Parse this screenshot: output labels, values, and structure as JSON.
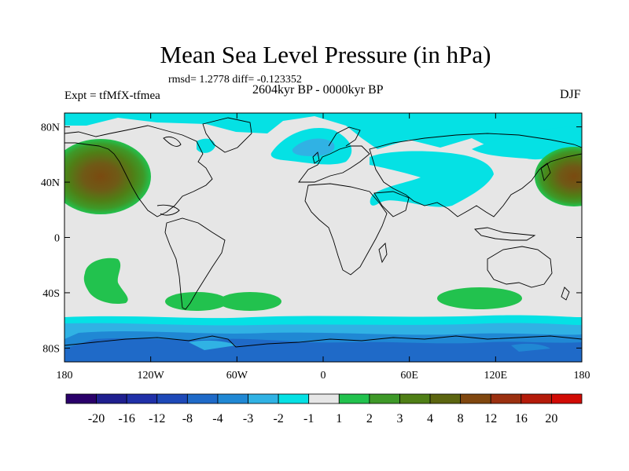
{
  "title": "Mean Sea Level Pressure (in hPa)",
  "stats": "rmsd= 1.2778 diff= -0.123352",
  "period": "2604kyr BP - 0000kyr BP",
  "experiment": "Expt = tfMfX-tfmea",
  "season": "DJF",
  "axes": {
    "lat_labels": [
      {
        "label": "80N",
        "lat": 80
      },
      {
        "label": "40N",
        "lat": 40
      },
      {
        "label": "0",
        "lat": 0
      },
      {
        "label": "40S",
        "lat": -40
      },
      {
        "label": "80S",
        "lat": -80
      }
    ],
    "lon_labels": [
      {
        "label": "180",
        "lon": -180
      },
      {
        "label": "120W",
        "lon": -120
      },
      {
        "label": "60W",
        "lon": -60
      },
      {
        "label": "0",
        "lon": 0
      },
      {
        "label": "60E",
        "lon": 60
      },
      {
        "label": "120E",
        "lon": 120
      },
      {
        "label": "180",
        "lon": 180
      }
    ],
    "lon_range": [
      -180,
      180
    ],
    "lat_range": [
      -90,
      90
    ]
  },
  "colorbar": {
    "colors": [
      "#2a006a",
      "#1f1f8f",
      "#2030a8",
      "#1e49b8",
      "#1f6ac8",
      "#2088d4",
      "#30b2e4",
      "#05e1e4",
      "#e6e6e6",
      "#22c24e",
      "#3e9928",
      "#4f7f16",
      "#5c6510",
      "#80470f",
      "#9b3010",
      "#b41b0a",
      "#d10b05"
    ],
    "labels": [
      "-20",
      "-16",
      "-12",
      "-8",
      "-4",
      "-3",
      "-2",
      "-1",
      "1",
      "2",
      "3",
      "4",
      "8",
      "12",
      "16",
      "20"
    ]
  }
}
